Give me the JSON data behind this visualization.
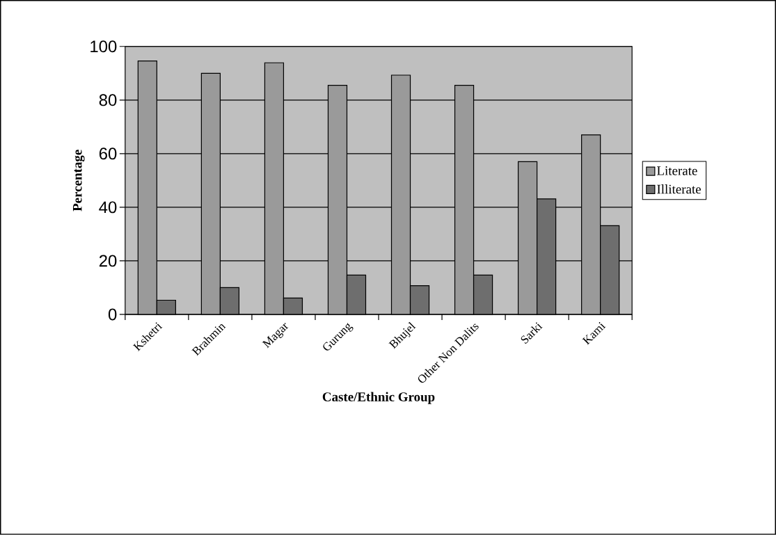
{
  "chart_data": {
    "type": "bar",
    "xlabel": "Caste/Ethnic Group",
    "ylabel": "Percentage",
    "categories": [
      "Kshetri",
      "Brahmin",
      "Magar",
      "Gurung",
      "Bhujel",
      "Other Non Dalits",
      "Sarki",
      "Kami"
    ],
    "series": [
      {
        "name": "Literate",
        "color": "#9a9a9a",
        "values": [
          94.6,
          90.0,
          93.9,
          85.5,
          89.3,
          85.5,
          57.0,
          67.0
        ]
      },
      {
        "name": "Illiterate",
        "color": "#6e6e6e",
        "values": [
          5.3,
          10.0,
          6.1,
          14.7,
          10.7,
          14.7,
          43.1,
          33.1
        ]
      }
    ],
    "ylim": [
      0,
      100
    ],
    "yticks": [
      0,
      20,
      40,
      60,
      80,
      100
    ],
    "grid": "y",
    "legend": "right"
  }
}
